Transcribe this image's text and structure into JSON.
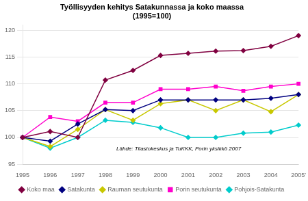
{
  "chart_data": {
    "type": "line",
    "title": "Työllisyyden kehitys Satakunnassa ja koko maassa\n(1995=100)",
    "categories": [
      "1995",
      "1996",
      "1997",
      "1998",
      "1999",
      "2000",
      "2001",
      "2002",
      "2003",
      "2004",
      "2005'"
    ],
    "series": [
      {
        "name": "Koko maa",
        "color": "#800040",
        "marker": "diamond",
        "values": [
          100,
          101.1,
          100.0,
          110.7,
          112.5,
          115.3,
          115.7,
          116.1,
          116.2,
          117.0,
          119.0
        ]
      },
      {
        "name": "Satakunta",
        "color": "#000080",
        "marker": "diamond",
        "values": [
          100,
          99.3,
          102.5,
          105.2,
          105.0,
          107.0,
          107.0,
          107.0,
          107.0,
          107.3,
          108.0
        ]
      },
      {
        "name": "Rauman seutukunta",
        "color": "#c8c800",
        "marker": "diamond",
        "values": [
          100,
          98.3,
          101.5,
          105.2,
          103.2,
          106.3,
          107.0,
          105.0,
          107.0,
          104.8,
          108.0
        ]
      },
      {
        "name": "Porin seutukunta",
        "color": "#ff00cc",
        "marker": "square",
        "values": [
          100,
          103.8,
          103.0,
          106.5,
          106.5,
          109.0,
          109.0,
          109.5,
          108.7,
          109.5,
          110.0
        ]
      },
      {
        "name": "Pohjois-Satakunta",
        "color": "#00cccc",
        "marker": "diamond",
        "values": [
          100,
          98.0,
          100.0,
          103.2,
          102.8,
          101.8,
          100.0,
          100.0,
          100.8,
          101.0,
          102.3
        ]
      }
    ],
    "ylim": [
      95,
      121
    ],
    "yticks": [
      95,
      100,
      105,
      110,
      115,
      120
    ],
    "grid": true,
    "legend": "bottom",
    "annotation": "Lähde: Tilastokeskus ja TuKKK, Porin yksikkö 2007"
  }
}
